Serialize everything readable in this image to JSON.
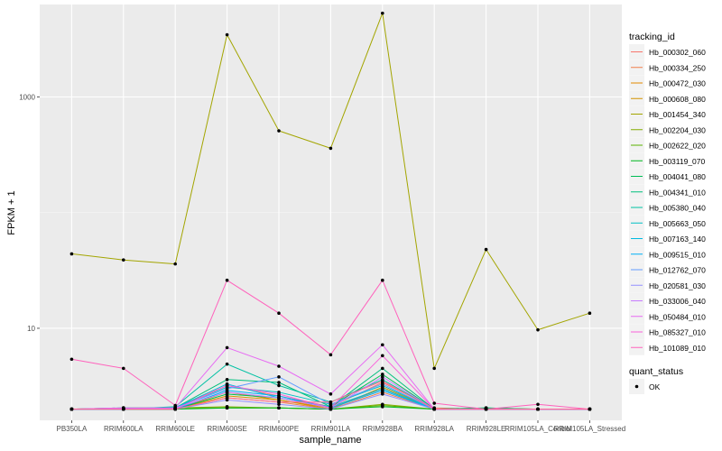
{
  "chart_data": {
    "type": "line",
    "title": "",
    "xlabel": "sample_name",
    "ylabel": "FPKM + 1",
    "y_scale": "log10",
    "ylim": [
      1.6,
      6300
    ],
    "y_ticks": [
      {
        "value": 10,
        "label": "10"
      },
      {
        "value": 1000,
        "label": "1000"
      }
    ],
    "categories": [
      "PB350LA",
      "RRIM600LA",
      "RRIM600LE",
      "RRIM600SE",
      "RRIM600PE",
      "RRIM901LA",
      "RRIM928BA",
      "RRIM928LA",
      "RRIM928LE",
      "RRIM105LA_Control",
      "RRIM105LA_Stressed"
    ],
    "grid": true,
    "legend_position": "right",
    "legend_title": "tracking_id",
    "shape_legend": {
      "title": "quant_status",
      "entries": [
        "OK"
      ]
    },
    "series": [
      {
        "name": "Hb_000302_060",
        "color": "#F8766D",
        "values": [
          2.0,
          2.0,
          2.05,
          3.2,
          2.6,
          2.1,
          3.4,
          2.05,
          2.0,
          2.0,
          2.0
        ]
      },
      {
        "name": "Hb_000334_250",
        "color": "#F07E4A",
        "values": [
          2.0,
          2.0,
          2.0,
          2.5,
          2.3,
          2.0,
          2.8,
          2.0,
          2.0,
          2.0,
          2.0
        ]
      },
      {
        "name": "Hb_000472_030",
        "color": "#E38900",
        "values": [
          2.0,
          2.0,
          2.0,
          2.8,
          2.4,
          2.05,
          3.0,
          2.0,
          2.0,
          2.0,
          2.0
        ]
      },
      {
        "name": "Hb_000608_080",
        "color": "#D49200",
        "values": [
          2.0,
          2.0,
          2.0,
          2.6,
          2.4,
          2.0,
          3.1,
          2.0,
          2.0,
          2.0,
          2.0
        ]
      },
      {
        "name": "Hb_001454_340",
        "color": "#A3A500",
        "values": [
          44,
          39,
          36,
          3450,
          510,
          360,
          5300,
          4.5,
          48,
          9.7,
          13.5
        ]
      },
      {
        "name": "Hb_002204_030",
        "color": "#85AD00",
        "values": [
          2.0,
          2.05,
          2.05,
          2.1,
          2.05,
          2.0,
          2.2,
          2.0,
          2.0,
          2.0,
          2.0
        ]
      },
      {
        "name": "Hb_002622_020",
        "color": "#5BB300",
        "values": [
          2.0,
          2.0,
          2.05,
          2.05,
          2.05,
          2.0,
          2.15,
          2.0,
          2.0,
          2.0,
          2.0
        ]
      },
      {
        "name": "Hb_003119_070",
        "color": "#00B81F",
        "values": [
          2.0,
          2.0,
          2.0,
          2.05,
          2.05,
          2.0,
          2.1,
          2.0,
          2.05,
          2.0,
          2.0
        ]
      },
      {
        "name": "Hb_004041_080",
        "color": "#00BC56",
        "values": [
          2.0,
          2.0,
          2.0,
          2.7,
          2.5,
          2.1,
          4.0,
          2.0,
          2.0,
          2.0,
          2.0
        ]
      },
      {
        "name": "Hb_004341_010",
        "color": "#00BF7D",
        "values": [
          2.0,
          2.05,
          2.05,
          3.6,
          3.4,
          2.1,
          4.5,
          2.0,
          2.05,
          2.0,
          2.0
        ]
      },
      {
        "name": "Hb_005380_040",
        "color": "#00C1A3",
        "values": [
          2.0,
          2.0,
          2.1,
          4.9,
          3.2,
          2.3,
          3.6,
          2.0,
          2.0,
          2.0,
          2.0
        ]
      },
      {
        "name": "Hb_005663_050",
        "color": "#00BFC4",
        "values": [
          2.0,
          2.0,
          2.05,
          3.1,
          2.8,
          2.2,
          3.2,
          2.0,
          2.0,
          2.0,
          2.0
        ]
      },
      {
        "name": "Hb_007163_140",
        "color": "#00BAE0",
        "values": [
          2.0,
          2.0,
          2.05,
          3.3,
          2.5,
          2.1,
          3.0,
          2.0,
          2.0,
          2.0,
          2.0
        ]
      },
      {
        "name": "Hb_009515_010",
        "color": "#00B0F6",
        "values": [
          2.0,
          2.0,
          2.0,
          2.9,
          2.6,
          2.05,
          2.9,
          2.0,
          2.0,
          2.0,
          2.0
        ]
      },
      {
        "name": "Hb_012762_070",
        "color": "#619CFF",
        "values": [
          2.0,
          2.0,
          2.05,
          3.0,
          3.8,
          2.2,
          3.3,
          2.0,
          2.0,
          2.0,
          2.0
        ]
      },
      {
        "name": "Hb_020581_030",
        "color": "#9590FF",
        "values": [
          2.0,
          2.05,
          2.0,
          2.4,
          2.2,
          2.0,
          2.7,
          2.0,
          2.0,
          2.0,
          2.0
        ]
      },
      {
        "name": "Hb_033006_040",
        "color": "#C77CFF",
        "values": [
          2.0,
          2.0,
          2.05,
          2.8,
          2.5,
          2.05,
          3.8,
          2.0,
          2.0,
          2.0,
          2.0
        ]
      },
      {
        "name": "Hb_050484_010",
        "color": "#E76BF3",
        "values": [
          2.0,
          2.05,
          2.05,
          6.8,
          4.7,
          2.7,
          7.2,
          2.0,
          2.0,
          2.0,
          2.0
        ]
      },
      {
        "name": "Hb_085327_010",
        "color": "#FA62DB",
        "values": [
          2.0,
          2.0,
          2.0,
          3.2,
          2.7,
          2.05,
          5.8,
          2.0,
          2.0,
          2.0,
          2.0
        ]
      },
      {
        "name": "Hb_101089_010",
        "color": "#FF62BC",
        "values": [
          5.4,
          4.5,
          2.15,
          26,
          13.5,
          5.9,
          26,
          2.25,
          2.0,
          2.2,
          2.0
        ]
      },
      {
        "name": "",
        "color": "#FF6C91",
        "values": [
          2.0,
          2.0,
          2.0,
          2.5,
          2.3,
          2.3,
          3.5,
          2.0,
          2.0,
          2.0,
          2.0
        ]
      }
    ]
  }
}
